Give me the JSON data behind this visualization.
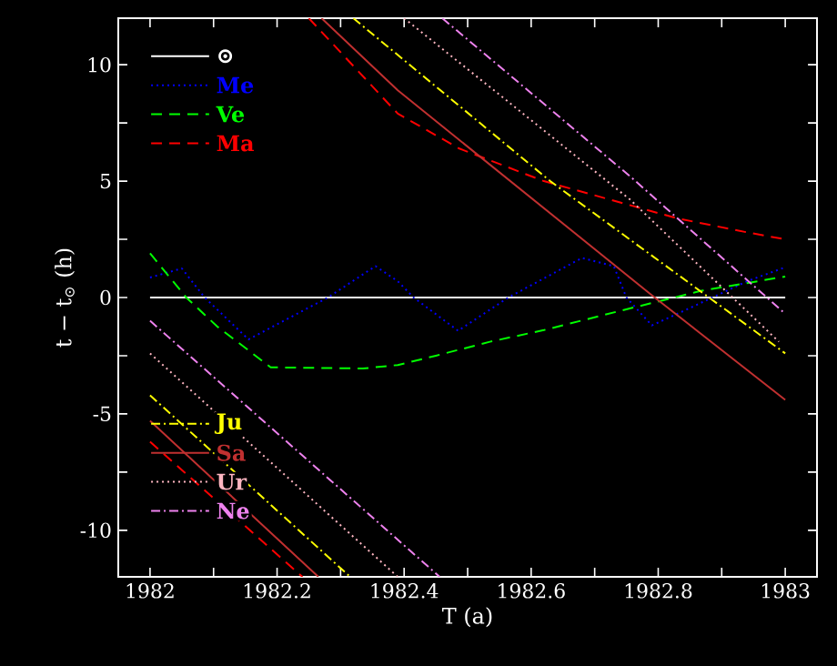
{
  "chart_data": {
    "type": "line",
    "xlabel": "T (a)",
    "ylabel": "t − t$_{⊙}$ (h)",
    "xlim": [
      1981.95,
      1983.05
    ],
    "ylim": [
      -12,
      12
    ],
    "xticks": [
      1982,
      {
        "value": 1982.1,
        "label": null
      },
      1982.2,
      {
        "value": 1982.3,
        "label": null
      },
      1982.4,
      {
        "value": 1982.5,
        "label": null
      },
      1982.6,
      {
        "value": 1982.7,
        "label": null
      },
      1982.8,
      {
        "value": 1982.9,
        "label": null
      },
      1983
    ],
    "yticks": [
      -10,
      {
        "value": -7.5,
        "label": null
      },
      -5,
      {
        "value": -2.5,
        "label": null
      },
      0,
      {
        "value": 2.5,
        "label": null
      },
      5,
      {
        "value": 7.5,
        "label": null
      },
      10
    ],
    "legend": "left",
    "grid": false,
    "marker": "none",
    "series": [
      {
        "name": "⊙",
        "color": "#ffffff",
        "line_style": "solid",
        "x": [
          1982,
          1983
        ],
        "values": [
          0,
          0
        ]
      },
      {
        "name": "Me",
        "color": "#0000ff",
        "line_style": "dotted",
        "x": [
          1982,
          1982.05,
          1982.086,
          1982.155,
          1982.28,
          1982.355,
          1982.39,
          1982.415,
          1982.485,
          1982.564,
          1982.68,
          1982.73,
          1982.75,
          1982.79,
          1982.85,
          1982.94,
          1983
        ],
        "values": [
          0.86,
          1.25,
          0,
          -1.8,
          0,
          1.35,
          0.7,
          0,
          -1.43,
          0,
          1.7,
          1.35,
          0,
          -1.2,
          -0.45,
          0.7,
          1.3
        ]
      },
      {
        "name": "Ve",
        "color": "#00ff00",
        "line_style": "dashed",
        "x": [
          1982,
          1982.057,
          1982.106,
          1982.19,
          1982.335,
          1982.39,
          1982.45,
          1982.535,
          1982.62,
          1982.736,
          1982.87,
          1983
        ],
        "values": [
          1.9,
          0,
          -1.25,
          -3.0,
          -3.05,
          -2.9,
          -2.5,
          -1.9,
          -1.4,
          -0.6,
          0.3,
          0.9
        ]
      },
      {
        "name": "Ma",
        "color": "#ff0000",
        "line_style": "dashed",
        "x": [
          1982,
          1982.24,
          null,
          1982.25,
          1982.39,
          1982.487,
          1982.62,
          1982.83,
          1982.94,
          1983
        ],
        "values": [
          -6.2,
          -12,
          null,
          12,
          7.9,
          6.4,
          5.0,
          3.4,
          2.8,
          2.5
        ]
      },
      {
        "name": "Ju",
        "color": "#ffff00",
        "line_style": "dashdotted",
        "x": [
          1982,
          1982.315,
          null,
          1982.32,
          1982.63,
          1983
        ],
        "values": [
          -4.2,
          -12,
          null,
          12,
          5.0,
          -2.4
        ]
      },
      {
        "name": "Sa",
        "color": "#c03030",
        "line_style": "solid",
        "x": [
          1982,
          1982.265,
          null,
          1982.27,
          1982.39,
          1982.79,
          1983
        ],
        "values": [
          -5.3,
          -12,
          null,
          12,
          8.9,
          0.1,
          -4.4
        ]
      },
      {
        "name": "Ur",
        "color": "#ffb6c1",
        "line_style": "dotted",
        "x": [
          1982,
          1982.39,
          null,
          1982.4,
          1982.756,
          1982.99
        ],
        "values": [
          -2.4,
          -12,
          null,
          12,
          4.2,
          -1.9
        ]
      },
      {
        "name": "Ne",
        "color": "#ee82ee",
        "line_style": "dashdotted",
        "x": [
          1982,
          1982.456,
          null,
          1982.46,
          1982.756,
          1983
        ],
        "values": [
          -1.0,
          -12,
          null,
          12,
          5.2,
          -0.7
        ]
      }
    ]
  }
}
